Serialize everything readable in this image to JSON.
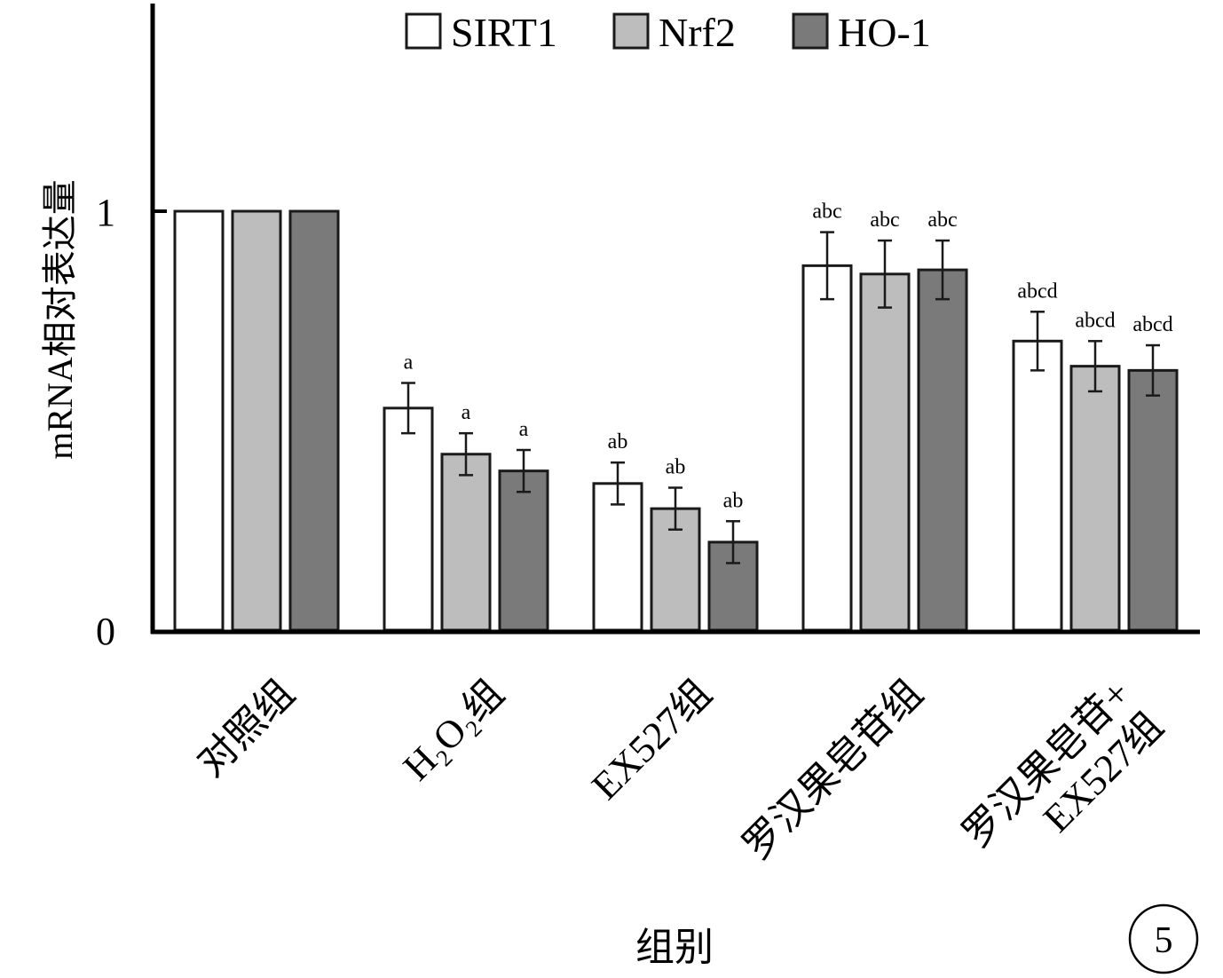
{
  "chart_data": {
    "type": "bar",
    "ylabel": "mRNA相对表达量",
    "xlabel": "组别",
    "ylim": [
      0,
      1.5
    ],
    "yticks": [
      {
        "value": 0,
        "label": "0"
      },
      {
        "value": 1,
        "label": "1"
      }
    ],
    "categories": [
      {
        "lines": [
          "对照组"
        ]
      },
      {
        "lines": [
          "H₂O₂组"
        ]
      },
      {
        "lines": [
          "EX527组"
        ]
      },
      {
        "lines": [
          "罗汉果皂苷组"
        ]
      },
      {
        "lines": [
          "罗汉果皂苷+",
          "EX527组"
        ]
      }
    ],
    "series": [
      {
        "name": "SIRT1",
        "color": "#ffffff",
        "values": [
          1.0,
          0.53,
          0.35,
          0.87,
          0.69
        ],
        "errors": [
          0,
          0.06,
          0.05,
          0.08,
          0.07
        ],
        "annotations": [
          "",
          "a",
          "ab",
          "abc",
          "abcd"
        ]
      },
      {
        "name": "Nrf2",
        "color": "#bdbdbd",
        "values": [
          1.0,
          0.42,
          0.29,
          0.85,
          0.63
        ],
        "errors": [
          0,
          0.05,
          0.05,
          0.08,
          0.06
        ],
        "annotations": [
          "",
          "a",
          "ab",
          "abc",
          "abcd"
        ]
      },
      {
        "name": "HO-1",
        "color": "#7a7a7a",
        "values": [
          1.0,
          0.38,
          0.21,
          0.86,
          0.62
        ],
        "errors": [
          0,
          0.05,
          0.05,
          0.07,
          0.06
        ],
        "annotations": [
          "",
          "a",
          "ab",
          "abc",
          "abcd"
        ]
      }
    ],
    "legend_position": "top",
    "grid": false
  },
  "figure_number": "5"
}
